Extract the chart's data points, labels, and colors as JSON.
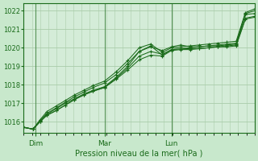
{
  "xlabel": "Pression niveau de la mer( hPa )",
  "bg_color": "#c8e8cc",
  "plot_bg_color": "#d4ecd8",
  "grid_color": "#aaccaa",
  "line_color": "#1a6b1a",
  "ylim": [
    1015.4,
    1022.4
  ],
  "yticks": [
    1016,
    1017,
    1018,
    1019,
    1020,
    1021,
    1022
  ],
  "xtick_labels": [
    "Dim",
    "Mar",
    "Lun"
  ],
  "xtick_positions": [
    0.05,
    0.35,
    0.64
  ],
  "vline_positions": [
    0.05,
    0.35,
    0.64
  ],
  "lines": [
    {
      "x": [
        0.0,
        0.04,
        0.07,
        0.1,
        0.14,
        0.18,
        0.22,
        0.26,
        0.3,
        0.35,
        0.4,
        0.45,
        0.5,
        0.55,
        0.6,
        0.64,
        0.68,
        0.72,
        0.76,
        0.8,
        0.84,
        0.88,
        0.92,
        0.96,
        1.0
      ],
      "y": [
        1015.7,
        1015.6,
        1016.0,
        1016.4,
        1016.7,
        1017.0,
        1017.25,
        1017.5,
        1017.7,
        1017.9,
        1018.4,
        1019.0,
        1019.8,
        1020.05,
        1019.85,
        1020.05,
        1020.15,
        1020.05,
        1020.05,
        1020.1,
        1020.1,
        1020.15,
        1020.2,
        1021.8,
        1021.85
      ]
    },
    {
      "x": [
        0.0,
        0.04,
        0.07,
        0.1,
        0.14,
        0.18,
        0.22,
        0.26,
        0.3,
        0.35,
        0.4,
        0.45,
        0.5,
        0.55,
        0.6,
        0.64,
        0.68,
        0.72,
        0.76,
        0.8,
        0.84,
        0.88,
        0.92,
        0.96,
        1.0
      ],
      "y": [
        1015.7,
        1015.6,
        1016.0,
        1016.35,
        1016.6,
        1016.9,
        1017.2,
        1017.45,
        1017.65,
        1017.85,
        1018.35,
        1018.9,
        1019.55,
        1019.8,
        1019.65,
        1019.9,
        1019.95,
        1019.95,
        1019.95,
        1020.0,
        1020.05,
        1020.05,
        1020.1,
        1021.55,
        1021.65
      ]
    },
    {
      "x": [
        0.0,
        0.04,
        0.07,
        0.1,
        0.14,
        0.18,
        0.22,
        0.26,
        0.3,
        0.35,
        0.4,
        0.45,
        0.5,
        0.55,
        0.6,
        0.64,
        0.68,
        0.72,
        0.76,
        0.8,
        0.84,
        0.88,
        0.92,
        0.96,
        1.0
      ],
      "y": [
        1015.7,
        1015.6,
        1016.0,
        1016.35,
        1016.6,
        1016.9,
        1017.2,
        1017.45,
        1017.65,
        1017.85,
        1018.3,
        1018.8,
        1019.35,
        1019.6,
        1019.55,
        1019.85,
        1019.9,
        1019.9,
        1019.95,
        1020.0,
        1020.05,
        1020.1,
        1020.15,
        1021.6,
        1021.7
      ]
    },
    {
      "x": [
        0.0,
        0.04,
        0.07,
        0.1,
        0.14,
        0.18,
        0.22,
        0.26,
        0.3,
        0.35,
        0.4,
        0.45,
        0.5,
        0.55,
        0.6,
        0.64,
        0.68,
        0.72,
        0.76,
        0.8,
        0.84,
        0.88,
        0.92,
        0.96,
        1.0
      ],
      "y": [
        1015.7,
        1015.6,
        1016.05,
        1016.45,
        1016.75,
        1017.05,
        1017.35,
        1017.6,
        1017.85,
        1018.1,
        1018.55,
        1019.15,
        1019.8,
        1020.1,
        1019.6,
        1019.9,
        1019.95,
        1020.0,
        1020.05,
        1020.1,
        1020.15,
        1020.2,
        1020.25,
        1021.85,
        1022.0
      ]
    },
    {
      "x": [
        0.0,
        0.04,
        0.07,
        0.1,
        0.14,
        0.18,
        0.22,
        0.26,
        0.3,
        0.35,
        0.4,
        0.45,
        0.5,
        0.55,
        0.6,
        0.64,
        0.68,
        0.72,
        0.76,
        0.8,
        0.84,
        0.88,
        0.92,
        0.96,
        1.0
      ],
      "y": [
        1015.7,
        1015.6,
        1016.1,
        1016.55,
        1016.85,
        1017.15,
        1017.45,
        1017.7,
        1017.95,
        1018.2,
        1018.7,
        1019.3,
        1020.0,
        1020.2,
        1019.75,
        1020.0,
        1020.05,
        1020.1,
        1020.15,
        1020.2,
        1020.25,
        1020.3,
        1020.35,
        1021.9,
        1022.1
      ]
    }
  ]
}
